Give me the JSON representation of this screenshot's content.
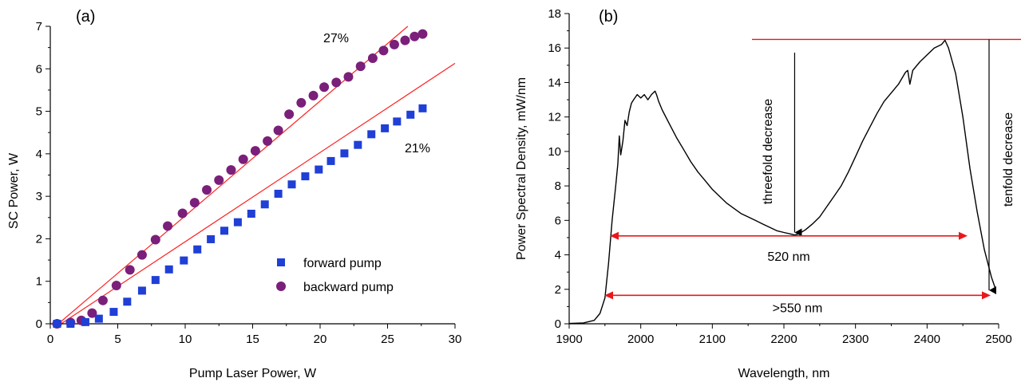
{
  "colors": {
    "forward": "#1f3fd6",
    "backward": "#7a1f7a",
    "fit": "#ff2020",
    "arrow_red": "#e8181c",
    "spectrum": "#000000"
  },
  "chart_data": [
    {
      "type": "scatter",
      "panel_label": "(a)",
      "xlabel": "Pump Laser Power, W",
      "ylabel": "SC Power, W",
      "xlim": [
        0,
        30
      ],
      "ylim": [
        0,
        7
      ],
      "xticks": [
        "0",
        "5",
        "10",
        "15",
        "20",
        "25",
        "30"
      ],
      "yticks": [
        "0",
        "1",
        "2",
        "3",
        "4",
        "5",
        "6",
        "7"
      ],
      "legend": {
        "position": "bottom-right",
        "entries": [
          "forward pump",
          "backward pump"
        ]
      },
      "annotations": [
        "27%",
        "21%"
      ],
      "series": [
        {
          "name": "forward pump",
          "marker": "square",
          "x": [
            0.5,
            1.5,
            2.6,
            3.6,
            4.7,
            5.7,
            6.8,
            7.8,
            8.8,
            9.9,
            10.9,
            11.9,
            12.9,
            13.9,
            14.9,
            15.9,
            16.9,
            17.9,
            18.9,
            19.9,
            20.8,
            21.8,
            22.8,
            23.8,
            24.8,
            25.7,
            26.7,
            27.6
          ],
          "y": [
            0.0,
            0.0,
            0.04,
            0.12,
            0.28,
            0.52,
            0.78,
            1.03,
            1.28,
            1.49,
            1.75,
            1.99,
            2.19,
            2.39,
            2.59,
            2.81,
            3.06,
            3.28,
            3.47,
            3.63,
            3.83,
            4.01,
            4.21,
            4.46,
            4.6,
            4.76,
            4.92,
            5.07
          ]
        },
        {
          "name": "backward pump",
          "marker": "circle",
          "x": [
            0.5,
            1.5,
            2.3,
            3.1,
            3.9,
            4.9,
            5.9,
            6.8,
            7.8,
            8.7,
            9.8,
            10.7,
            11.6,
            12.5,
            13.4,
            14.3,
            15.2,
            16.1,
            16.9,
            17.7,
            18.6,
            19.5,
            20.3,
            21.2,
            22.1,
            23.0,
            23.9,
            24.7,
            25.5,
            26.3,
            27.0,
            27.6
          ],
          "y": [
            0.0,
            0.03,
            0.08,
            0.25,
            0.55,
            0.9,
            1.27,
            1.62,
            1.98,
            2.3,
            2.6,
            2.85,
            3.15,
            3.38,
            3.62,
            3.87,
            4.07,
            4.3,
            4.55,
            4.93,
            5.2,
            5.37,
            5.57,
            5.68,
            5.81,
            6.06,
            6.25,
            6.43,
            6.57,
            6.67,
            6.76,
            6.82
          ]
        },
        {
          "name": "27% fit",
          "line": true,
          "x": [
            0.6,
            26.5
          ],
          "y": [
            0.0,
            7.0
          ]
        },
        {
          "name": "21% fit",
          "line": true,
          "x": [
            0.8,
            30.0
          ],
          "y": [
            0.0,
            6.13
          ]
        }
      ]
    },
    {
      "type": "line",
      "panel_label": "(b)",
      "xlabel": "Wavelength, nm",
      "ylabel": "Power Spectral Density, mW/nm",
      "xlim": [
        1900,
        2500
      ],
      "ylim": [
        0,
        18
      ],
      "xticks": [
        "1900",
        "2000",
        "2100",
        "2200",
        "2300",
        "2400",
        "2500"
      ],
      "yticks": [
        "0",
        "2",
        "4",
        "6",
        "8",
        "10",
        "12",
        "14",
        "16",
        "18"
      ],
      "series": [
        {
          "name": "spectrum",
          "x": [
            1900,
            1920,
            1935,
            1943,
            1950,
            1955,
            1960,
            1965,
            1968,
            1970,
            1972,
            1975,
            1978,
            1981,
            1984,
            1987,
            1990,
            1995,
            2000,
            2005,
            2010,
            2015,
            2020,
            2022,
            2025,
            2030,
            2040,
            2050,
            2060,
            2070,
            2080,
            2090,
            2100,
            2110,
            2120,
            2130,
            2140,
            2150,
            2160,
            2170,
            2180,
            2190,
            2200,
            2210,
            2215,
            2220,
            2230,
            2240,
            2250,
            2260,
            2270,
            2280,
            2290,
            2300,
            2310,
            2320,
            2330,
            2340,
            2350,
            2360,
            2370,
            2373,
            2376,
            2380,
            2390,
            2400,
            2410,
            2420,
            2425,
            2430,
            2440,
            2450,
            2460,
            2470,
            2480,
            2490,
            2495
          ],
          "y": [
            0.02,
            0.05,
            0.2,
            0.6,
            1.5,
            3.5,
            6.0,
            8.0,
            9.3,
            10.9,
            9.8,
            10.6,
            11.8,
            11.5,
            12.3,
            12.8,
            13.0,
            13.3,
            13.1,
            13.3,
            13.0,
            13.3,
            13.5,
            13.3,
            12.9,
            12.4,
            11.6,
            10.8,
            10.1,
            9.4,
            8.8,
            8.3,
            7.8,
            7.4,
            7.0,
            6.7,
            6.4,
            6.2,
            6.0,
            5.8,
            5.6,
            5.4,
            5.3,
            5.2,
            5.15,
            5.2,
            5.45,
            5.8,
            6.2,
            6.8,
            7.4,
            8.0,
            8.8,
            9.7,
            10.6,
            11.4,
            12.2,
            12.9,
            13.4,
            13.9,
            14.6,
            14.7,
            13.9,
            14.7,
            15.2,
            15.6,
            16.0,
            16.2,
            16.45,
            16.0,
            14.5,
            12.0,
            9.0,
            6.5,
            4.3,
            2.7,
            2.1
          ]
        }
      ],
      "annotations": {
        "horizontal_line_y": 16.5,
        "threefold": {
          "label": "threefold decrease",
          "x": 2215,
          "from_y": 16.5,
          "to_y": 5.3
        },
        "tenfold": {
          "label": "tenfold decrease",
          "x": 2505,
          "from_y": 16.5,
          "to_y": 2.0
        },
        "span520": {
          "label": "520 nm",
          "x1": 1960,
          "x2": 2480,
          "y": 5.1
        },
        "span550": {
          "label": ">550 nm",
          "x1": 1955,
          "x2": 2510,
          "y": 1.65
        }
      }
    }
  ]
}
